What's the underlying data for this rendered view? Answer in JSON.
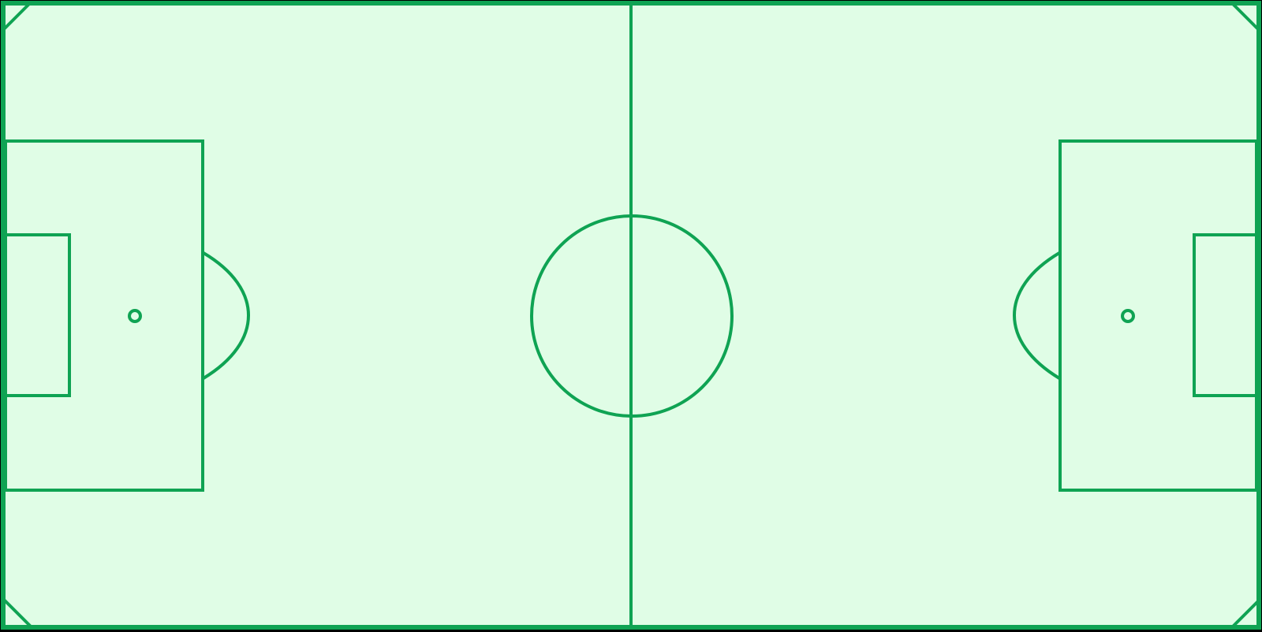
{
  "pitch": {
    "surface_color": "#e0fde6",
    "line_color": "#0fa353",
    "background_color": "#000000",
    "elements": [
      "touchlines",
      "halfway-line",
      "center-circle",
      "penalty-areas",
      "goal-areas",
      "penalty-spots",
      "penalty-arcs",
      "corner-arcs"
    ]
  }
}
